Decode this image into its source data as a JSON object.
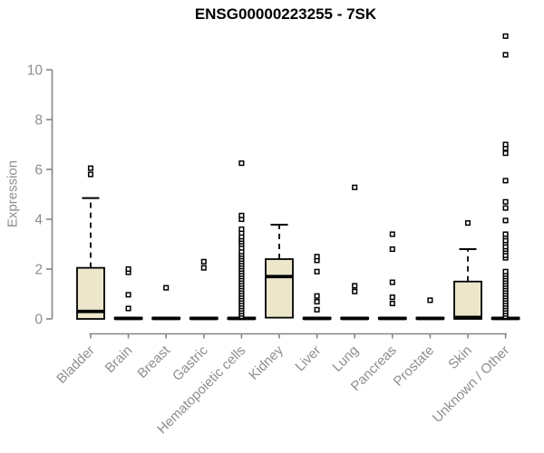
{
  "chart_data": {
    "type": "boxplot",
    "title": "ENSG00000223255 - 7SK",
    "ylabel": "Expression",
    "xlabel": "",
    "ylim": [
      0,
      11.5
    ],
    "yticks": [
      0,
      2,
      4,
      6,
      8,
      10
    ],
    "grid": false,
    "legend": null,
    "categories": [
      "Bladder",
      "Brain",
      "Breast",
      "Gastric",
      "Hematopoietic cells",
      "Kidney",
      "Liver",
      "Lung",
      "Pancreas",
      "Prostate",
      "Skin",
      "Unknown / Other"
    ],
    "boxes": [
      {
        "category": "Bladder",
        "q1": 0.0,
        "median": 0.3,
        "q3": 2.05,
        "whisker_low": 0.0,
        "whisker_high": 4.85,
        "outliers": [
          5.8,
          6.05
        ]
      },
      {
        "category": "Brain",
        "q1": 0.0,
        "median": 0.02,
        "q3": 0.05,
        "whisker_low": 0.0,
        "whisker_high": 0.07,
        "outliers": [
          0.42,
          0.97,
          1.87,
          2.0
        ]
      },
      {
        "category": "Breast",
        "q1": 0.0,
        "median": 0.02,
        "q3": 0.05,
        "whisker_low": 0.0,
        "whisker_high": 0.07,
        "outliers": [
          1.25
        ]
      },
      {
        "category": "Gastric",
        "q1": 0.0,
        "median": 0.02,
        "q3": 0.05,
        "whisker_low": 0.0,
        "whisker_high": 0.07,
        "outliers": [
          2.05,
          2.3
        ]
      },
      {
        "category": "Hematopoietic cells",
        "q1": 0.0,
        "median": 0.02,
        "q3": 0.05,
        "whisker_low": 0.0,
        "whisker_high": 0.07,
        "outliers": [
          0.1,
          0.2,
          0.3,
          0.4,
          0.5,
          0.6,
          0.7,
          0.8,
          0.9,
          1.0,
          1.1,
          1.2,
          1.3,
          1.4,
          1.5,
          1.6,
          1.7,
          1.8,
          1.9,
          2.0,
          2.1,
          2.2,
          2.3,
          2.4,
          2.5,
          2.6,
          2.7,
          2.85,
          3.0,
          3.1,
          3.2,
          3.3,
          3.45,
          3.6,
          4.0,
          4.15,
          6.25
        ]
      },
      {
        "category": "Kidney",
        "q1": 0.05,
        "median": 1.7,
        "q3": 2.4,
        "whisker_low": 0.05,
        "whisker_high": 3.78,
        "outliers": []
      },
      {
        "category": "Liver",
        "q1": 0.0,
        "median": 0.02,
        "q3": 0.05,
        "whisker_low": 0.0,
        "whisker_high": 0.07,
        "outliers": [
          0.37,
          0.69,
          0.92,
          1.9,
          2.35,
          2.5
        ]
      },
      {
        "category": "Lung",
        "q1": 0.0,
        "median": 0.02,
        "q3": 0.05,
        "whisker_low": 0.0,
        "whisker_high": 0.07,
        "outliers": [
          1.1,
          1.33,
          5.28
        ]
      },
      {
        "category": "Pancreas",
        "q1": 0.0,
        "median": 0.02,
        "q3": 0.05,
        "whisker_low": 0.0,
        "whisker_high": 0.07,
        "outliers": [
          0.62,
          0.87,
          1.47,
          2.8,
          3.4
        ]
      },
      {
        "category": "Prostate",
        "q1": 0.0,
        "median": 0.02,
        "q3": 0.05,
        "whisker_low": 0.0,
        "whisker_high": 0.07,
        "outliers": [
          0.75
        ]
      },
      {
        "category": "Skin",
        "q1": 0.0,
        "median": 0.06,
        "q3": 1.5,
        "whisker_low": 0.0,
        "whisker_high": 2.8,
        "outliers": [
          3.85
        ]
      },
      {
        "category": "Unknown / Other",
        "q1": 0.0,
        "median": 0.02,
        "q3": 0.05,
        "whisker_low": 0.0,
        "whisker_high": 0.07,
        "outliers": [
          0.1,
          0.2,
          0.3,
          0.4,
          0.5,
          0.6,
          0.7,
          0.8,
          0.9,
          1.0,
          1.1,
          1.2,
          1.3,
          1.4,
          1.5,
          1.6,
          1.7,
          1.8,
          1.9,
          2.45,
          2.55,
          2.7,
          2.8,
          2.9,
          3.05,
          3.15,
          3.3,
          3.4,
          3.95,
          4.45,
          4.7,
          5.55,
          6.65,
          6.85,
          7.0,
          10.6,
          11.35
        ]
      }
    ],
    "colors": {
      "box_fill": "#ece7cb",
      "box_stroke": "#000000",
      "median": "#000000",
      "outlier": "#000000",
      "axis_line": "#858585",
      "axis_text": "#8e8e8e",
      "title": "#000000",
      "background": "#ffffff"
    }
  }
}
